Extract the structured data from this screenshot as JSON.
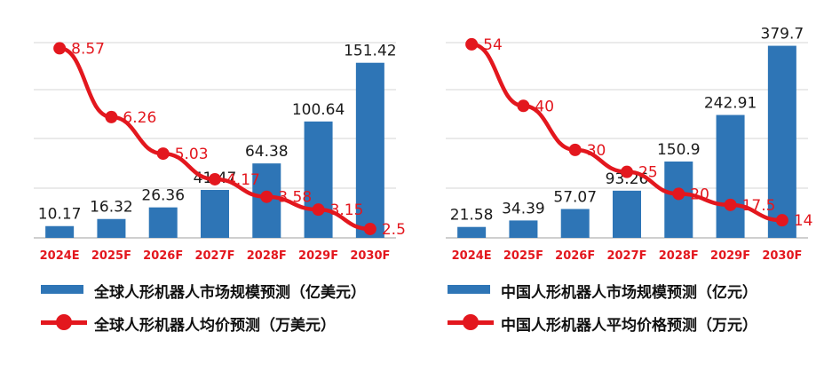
{
  "colors": {
    "bar": "#2e75b6",
    "line": "#e3171e",
    "grid": "#d6d6d6",
    "axis": "#bfbfbf"
  },
  "chart_data": [
    {
      "type": "bar",
      "categories": [
        "2024E",
        "2025F",
        "2026F",
        "2027F",
        "2028F",
        "2029F",
        "2030F"
      ],
      "series": [
        {
          "name": "全球人形机器人市场规模预测（亿美元）",
          "type": "bar",
          "values": [
            10.17,
            16.32,
            26.36,
            41.47,
            64.38,
            100.64,
            151.42
          ],
          "labels": [
            "10.17",
            "16.32",
            "26.36",
            "41.47",
            "64.38",
            "100.64",
            "151.42"
          ]
        },
        {
          "name": "全球人形机器人均价预测（万美元）",
          "type": "line",
          "values": [
            8.57,
            6.26,
            5.03,
            4.17,
            3.58,
            3.15,
            2.5
          ],
          "labels": [
            "8.57",
            "6.26",
            "5.03",
            "4.17",
            "3.58",
            "3.15",
            "2.5"
          ]
        }
      ],
      "ylim_bar": [
        0,
        175
      ],
      "ylim_line": [
        2.2,
        9
      ],
      "grid": true,
      "legend_position": "bottom"
    },
    {
      "type": "bar",
      "categories": [
        "2024E",
        "2025F",
        "2026F",
        "2027F",
        "2028F",
        "2029F",
        "2030F"
      ],
      "series": [
        {
          "name": "中国人形机器人市场规模预测（亿元）",
          "type": "bar",
          "values": [
            21.58,
            34.39,
            57.07,
            93.26,
            150.9,
            242.91,
            379.7
          ],
          "labels": [
            "21.58",
            "34.39",
            "57.07",
            "93.26",
            "150.9",
            "242.91",
            "379.7"
          ]
        },
        {
          "name": "中国人形机器人平均价格预测（万元）",
          "type": "line",
          "values": [
            54,
            40,
            30,
            25,
            20,
            17.5,
            14
          ],
          "labels": [
            "54",
            "40",
            "30",
            "25",
            "20",
            "17.5",
            "14"
          ]
        }
      ],
      "ylim_bar": [
        0,
        400
      ],
      "ylim_line": [
        10,
        56
      ],
      "grid": true,
      "legend_position": "bottom"
    }
  ]
}
